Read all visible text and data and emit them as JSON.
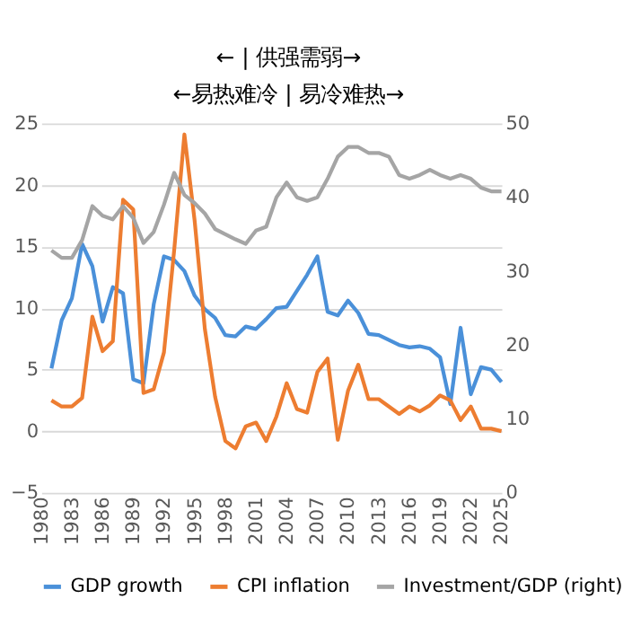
{
  "chart_data": {
    "type": "line",
    "title": "← | 供强需弱→",
    "subtitle": "←易热难冷 | 易冷难热→",
    "x": [
      1981,
      1982,
      1983,
      1984,
      1985,
      1986,
      1987,
      1988,
      1989,
      1990,
      1991,
      1992,
      1993,
      1994,
      1995,
      1996,
      1997,
      1998,
      1999,
      2000,
      2001,
      2002,
      2003,
      2004,
      2005,
      2006,
      2007,
      2008,
      2009,
      2010,
      2011,
      2012,
      2013,
      2014,
      2015,
      2016,
      2017,
      2018,
      2019,
      2020,
      2021,
      2022,
      2023,
      2024,
      2025
    ],
    "xlim": [
      1980,
      2025
    ],
    "xticks": [
      1980,
      1983,
      1986,
      1989,
      1992,
      1995,
      1998,
      2001,
      2004,
      2007,
      2010,
      2013,
      2016,
      2019,
      2022,
      2025
    ],
    "ylim": [
      -5,
      25
    ],
    "yticks": [
      -5,
      0,
      5,
      10,
      15,
      20,
      25
    ],
    "y2lim": [
      0,
      50
    ],
    "y2ticks": [
      0,
      10,
      20,
      30,
      40,
      50
    ],
    "grid": "y",
    "legend": "bottom",
    "line_style": "solid",
    "marker": "none",
    "series": [
      {
        "name": "GDP growth",
        "color": "#4a90d9",
        "values": [
          5.1,
          9.0,
          10.8,
          15.2,
          13.4,
          8.9,
          11.7,
          11.2,
          4.2,
          3.9,
          10.3,
          14.2,
          13.9,
          13.0,
          11.0,
          9.9,
          9.2,
          7.8,
          7.7,
          8.5,
          8.3,
          9.1,
          10.0,
          10.1,
          11.4,
          12.7,
          14.2,
          9.7,
          9.4,
          10.6,
          9.6,
          7.9,
          7.8,
          7.4,
          7.0,
          6.8,
          6.9,
          6.7,
          6.0,
          2.2,
          8.4,
          3.0,
          5.2,
          5.0,
          4.0
        ]
      },
      {
        "name": "CPI inflation",
        "color": "#ed7d31",
        "values": [
          2.5,
          2.0,
          2.0,
          2.7,
          9.3,
          6.5,
          7.3,
          18.8,
          18.0,
          3.1,
          3.4,
          6.4,
          14.7,
          24.1,
          17.1,
          8.3,
          2.8,
          -0.8,
          -1.4,
          0.4,
          0.7,
          -0.8,
          1.2,
          3.9,
          1.8,
          1.5,
          4.8,
          5.9,
          -0.7,
          3.3,
          5.4,
          2.6,
          2.6,
          2.0,
          1.4,
          2.0,
          1.6,
          2.1,
          2.9,
          2.5,
          0.9,
          2.0,
          0.2,
          0.2,
          0.0
        ]
      },
      {
        "name": "Investment/GDP (right)",
        "color": "#a5a5a5",
        "axis": "y2",
        "values": [
          32.8,
          31.8,
          31.8,
          34.2,
          38.8,
          37.5,
          37.0,
          38.8,
          37.2,
          33.8,
          35.3,
          39.0,
          43.3,
          40.3,
          39.2,
          37.8,
          35.7,
          35.0,
          34.3,
          33.7,
          35.5,
          36.0,
          40.0,
          42.0,
          40.0,
          39.5,
          40.0,
          42.5,
          45.5,
          46.8,
          46.8,
          46.0,
          46.0,
          45.5,
          43.0,
          42.5,
          43.0,
          43.7,
          43.0,
          42.5,
          43.0,
          42.5,
          41.3,
          40.8,
          40.8
        ]
      }
    ]
  }
}
